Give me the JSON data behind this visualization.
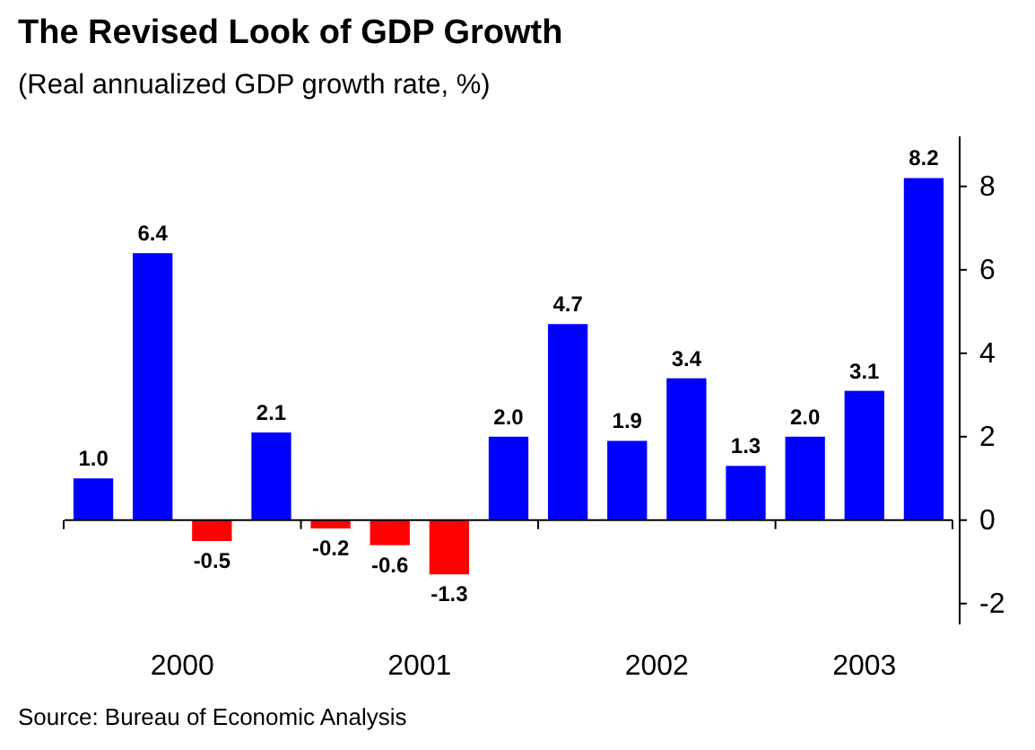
{
  "chart_data": {
    "type": "bar",
    "title": "The Revised Look of GDP Growth",
    "subtitle": "(Real annualized GDP growth rate, %)",
    "categories": [
      null,
      null,
      null,
      null,
      null,
      null,
      null,
      null,
      null,
      null,
      null,
      null,
      null,
      null,
      null
    ],
    "values": [
      1.0,
      6.4,
      -0.5,
      2.1,
      -0.2,
      -0.6,
      -1.3,
      2.0,
      4.7,
      1.9,
      3.4,
      1.3,
      2.0,
      3.1,
      8.2
    ],
    "colors": [
      "#0000ff",
      "#0000ff",
      "#ff0000",
      "#0000ff",
      "#ff0000",
      "#ff0000",
      "#ff0000",
      "#0000ff",
      "#0000ff",
      "#0000ff",
      "#0000ff",
      "#0000ff",
      "#0000ff",
      "#0000ff",
      "#0000ff"
    ],
    "value_labels": [
      "1.0",
      "6.4",
      "-0.5",
      "2.1",
      "-0.2",
      "-0.6",
      "-1.3",
      "2.0",
      "4.7",
      "1.9",
      "3.4",
      "1.3",
      "2.0",
      "3.1",
      "8.2"
    ],
    "annotations": [
      "2000",
      "2001",
      "2002",
      "2003",
      "Source: Bureau of Economic Analysis"
    ],
    "ylim": [
      -2.5,
      9.2
    ],
    "yticks": [
      -2,
      0,
      2,
      4,
      6,
      8
    ]
  }
}
